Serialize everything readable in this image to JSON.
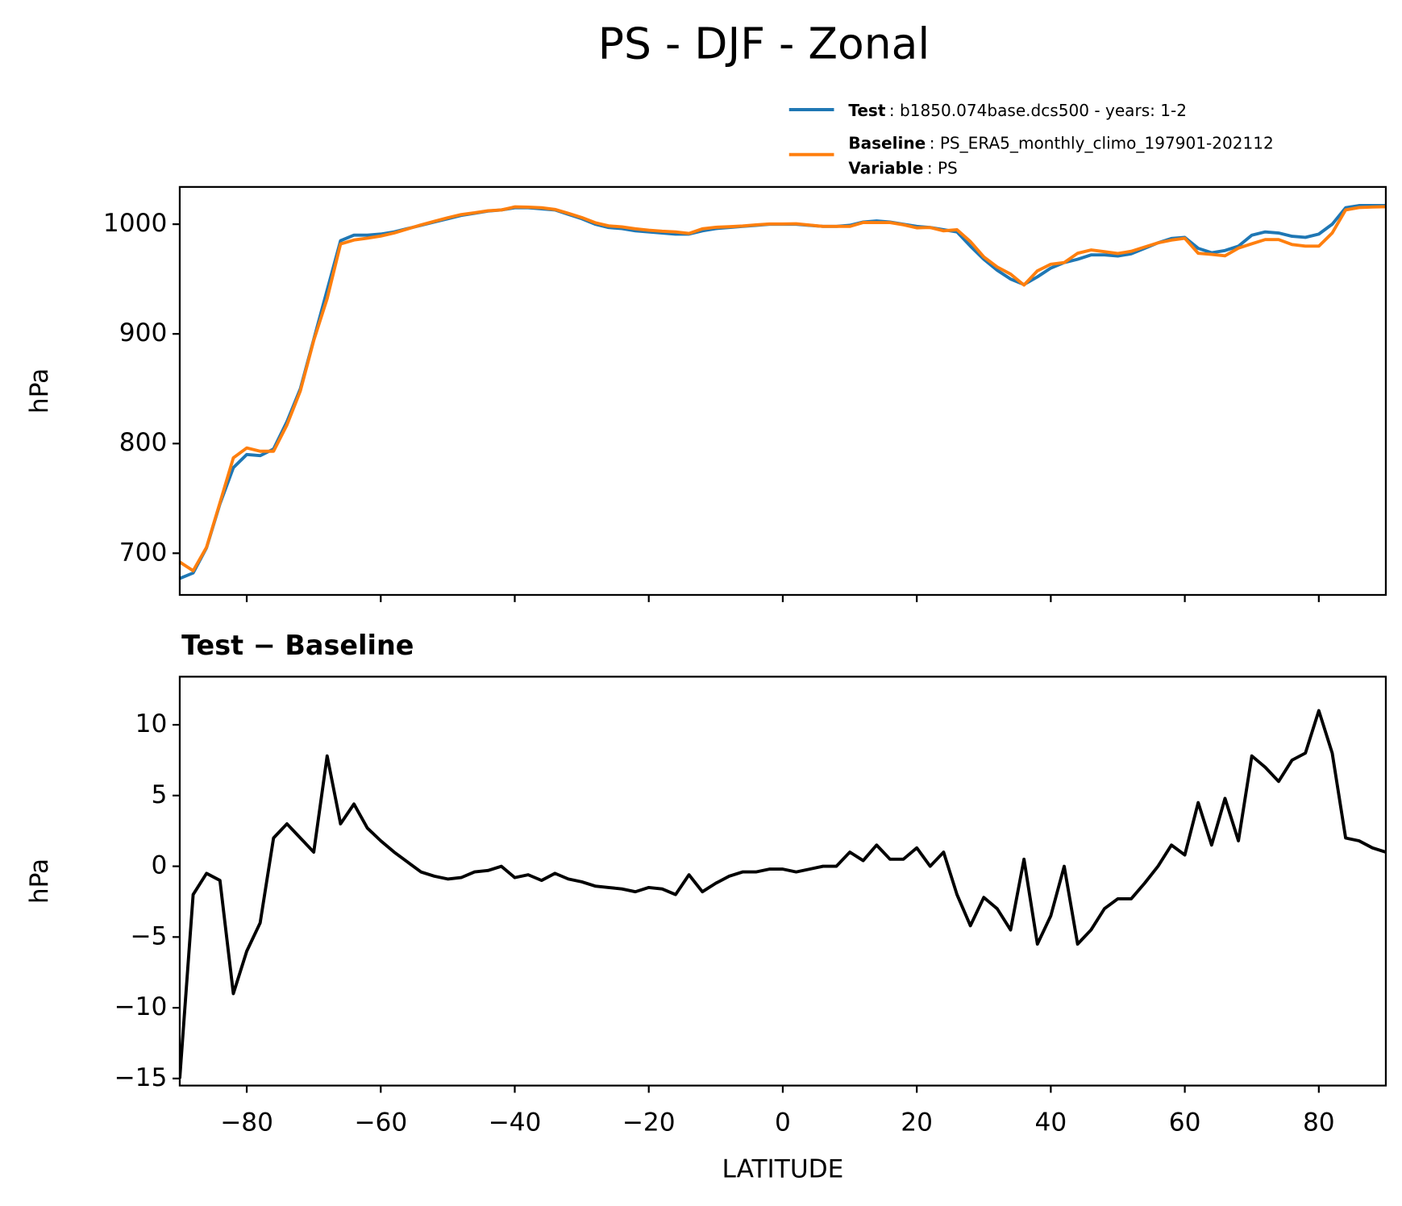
{
  "chart_data": [
    {
      "type": "line",
      "title": "PS - DJF - Zonal",
      "ylabel": "hPa",
      "x": [
        -90,
        -88,
        -86,
        -84,
        -82,
        -80,
        -78,
        -76,
        -74,
        -72,
        -70,
        -68,
        -66,
        -64,
        -62,
        -60,
        -58,
        -56,
        -54,
        -52,
        -50,
        -48,
        -46,
        -44,
        -42,
        -40,
        -38,
        -36,
        -34,
        -32,
        -30,
        -28,
        -26,
        -24,
        -22,
        -20,
        -18,
        -16,
        -14,
        -12,
        -10,
        -8,
        -6,
        -4,
        -2,
        0,
        2,
        4,
        6,
        8,
        10,
        12,
        14,
        16,
        18,
        20,
        22,
        24,
        26,
        28,
        30,
        32,
        34,
        36,
        38,
        40,
        42,
        44,
        46,
        48,
        50,
        52,
        54,
        56,
        58,
        60,
        62,
        64,
        66,
        68,
        70,
        72,
        74,
        76,
        78,
        80,
        82,
        84,
        86,
        88,
        90
      ],
      "series": [
        {
          "name": "Test",
          "description": ": b1850.074base.dcs500 - years: 1-2",
          "color": "#1f77b4",
          "values": [
            677,
            682,
            705,
            745,
            778,
            790,
            789,
            795,
            820,
            850,
            895,
            940,
            985,
            990,
            990,
            991,
            993,
            996,
            999,
            1002,
            1005,
            1008,
            1010,
            1012,
            1013,
            1015,
            1015,
            1014,
            1013,
            1009,
            1005,
            1000,
            997,
            996,
            994,
            993,
            992,
            991,
            991,
            994,
            996,
            997,
            998,
            999,
            1000,
            1000,
            1000,
            999,
            998,
            998,
            999,
            1002,
            1003,
            1002,
            1000,
            998,
            997,
            995,
            993,
            980,
            968,
            958,
            950,
            945,
            952,
            960,
            965,
            968,
            972,
            972,
            971,
            973,
            978,
            983,
            987,
            988,
            978,
            974,
            976,
            980,
            990,
            993,
            992,
            989,
            988,
            991,
            1000,
            1015,
            1017,
            1017,
            1017
          ]
        },
        {
          "name": "Baseline",
          "description": ": PS_ERA5_monthly_climo_197901-202112",
          "color": "#ff7f0e",
          "values": [
            692,
            684,
            705.5,
            746,
            787,
            796,
            793,
            793,
            817,
            848,
            894,
            932.2,
            982,
            985.6,
            987.3,
            989.2,
            992,
            995.7,
            999.4,
            1002.7,
            1005.9,
            1008.8,
            1010.4,
            1012.3,
            1013,
            1015.8,
            1015.6,
            1015,
            1013.5,
            1009.9,
            1006.1,
            1001.4,
            998.5,
            997.6,
            995.8,
            994.5,
            993.6,
            993,
            991.6,
            995.8,
            997.2,
            997.7,
            998.4,
            999.4,
            1000.2,
            1000.2,
            1000.4,
            999.2,
            998,
            998,
            998,
            1001.6,
            1001.5,
            1001.5,
            999.5,
            996.7,
            997,
            994,
            995,
            984.2,
            970.2,
            961,
            954.5,
            944.5,
            957.5,
            963.5,
            965,
            973.5,
            976.5,
            975,
            973.3,
            975.3,
            979.2,
            983,
            985.5,
            987.2,
            973.5,
            972.5,
            971.2,
            978.2,
            982.2,
            986,
            986,
            981.5,
            980,
            980,
            992,
            1013,
            1015.2,
            1015.7,
            1016
          ]
        }
      ],
      "legend_note": {
        "name": "Variable",
        "text": ": PS"
      },
      "xlim": [
        -90,
        90
      ],
      "xticks": [
        -80,
        -60,
        -40,
        -20,
        0,
        20,
        40,
        60,
        80
      ],
      "ylim": [
        662,
        1034
      ],
      "yticks": [
        700,
        800,
        900,
        1000
      ]
    },
    {
      "type": "line",
      "title": "Test − Baseline",
      "ylabel": "hPa",
      "xlabel": "LATITUDE",
      "color": "#000000",
      "x": [
        -90,
        -88,
        -86,
        -84,
        -82,
        -80,
        -78,
        -76,
        -74,
        -72,
        -70,
        -68,
        -66,
        -64,
        -62,
        -60,
        -58,
        -56,
        -54,
        -52,
        -50,
        -48,
        -46,
        -44,
        -42,
        -40,
        -38,
        -36,
        -34,
        -32,
        -30,
        -28,
        -26,
        -24,
        -22,
        -20,
        -18,
        -16,
        -14,
        -12,
        -10,
        -8,
        -6,
        -4,
        -2,
        0,
        2,
        4,
        6,
        8,
        10,
        12,
        14,
        16,
        18,
        20,
        22,
        24,
        26,
        28,
        30,
        32,
        34,
        36,
        38,
        40,
        42,
        44,
        46,
        48,
        50,
        52,
        54,
        56,
        58,
        60,
        62,
        64,
        66,
        68,
        70,
        72,
        74,
        76,
        78,
        80,
        82,
        84,
        86,
        88,
        90
      ],
      "values": [
        -15,
        -2,
        -0.5,
        -1,
        -9,
        -6,
        -4,
        2,
        3,
        2,
        1,
        7.8,
        3,
        4.4,
        2.7,
        1.8,
        1,
        0.3,
        -0.4,
        -0.7,
        -0.9,
        -0.8,
        -0.4,
        -0.3,
        0,
        -0.8,
        -0.6,
        -1,
        -0.5,
        -0.9,
        -1.1,
        -1.4,
        -1.5,
        -1.6,
        -1.8,
        -1.5,
        -1.6,
        -2,
        -0.6,
        -1.8,
        -1.2,
        -0.7,
        -0.4,
        -0.4,
        -0.2,
        -0.2,
        -0.4,
        -0.2,
        0,
        0,
        1,
        0.4,
        1.5,
        0.5,
        0.5,
        1.3,
        0,
        1,
        -2,
        -4.2,
        -2.2,
        -3,
        -4.5,
        0.5,
        -5.5,
        -3.5,
        0,
        -5.5,
        -4.5,
        -3,
        -2.3,
        -2.3,
        -1.2,
        0,
        1.5,
        0.8,
        4.5,
        1.5,
        4.8,
        1.8,
        7.8,
        7,
        6,
        7.5,
        8,
        11,
        8,
        2,
        1.8,
        1.3,
        1
      ],
      "xlim": [
        -90,
        90
      ],
      "xticks": [
        {
          "value": -80,
          "label": "−80"
        },
        {
          "value": -60,
          "label": "−60"
        },
        {
          "value": -40,
          "label": "−40"
        },
        {
          "value": -20,
          "label": "−20"
        },
        0,
        20,
        40,
        60,
        80
      ],
      "ylim": [
        -15.5,
        13.4
      ],
      "yticks": [
        {
          "value": -15,
          "label": "−15"
        },
        {
          "value": -10,
          "label": "−10"
        },
        {
          "value": -5,
          "label": "−5"
        },
        0,
        5,
        10
      ]
    }
  ]
}
